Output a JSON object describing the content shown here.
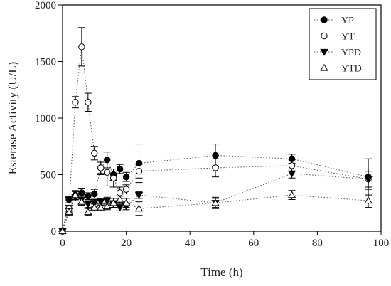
{
  "chart_data": {
    "type": "line",
    "xlabel": "Time (h)",
    "ylabel": "Esterase Activity (U/L)",
    "xlim": [
      0,
      100
    ],
    "ylim": [
      0,
      2000
    ],
    "xticks": [
      0,
      20,
      40,
      60,
      80,
      100
    ],
    "yticks": [
      0,
      500,
      1000,
      1500,
      2000
    ],
    "grid": false,
    "legend_position": "top-right",
    "line_style": "dotted",
    "series": [
      {
        "name": "YP",
        "marker": "filled-circle",
        "x": [
          0,
          2,
          4,
          6,
          8,
          10,
          12,
          14,
          16,
          18,
          20,
          24,
          48,
          72,
          96
        ],
        "y": [
          0,
          280,
          320,
          340,
          310,
          330,
          560,
          630,
          500,
          550,
          480,
          600,
          670,
          640,
          480
        ],
        "err": [
          0,
          30,
          40,
          40,
          30,
          40,
          50,
          70,
          50,
          40,
          40,
          170,
          100,
          40,
          160
        ]
      },
      {
        "name": "YT",
        "marker": "open-circle",
        "x": [
          0,
          2,
          4,
          6,
          8,
          10,
          12,
          14,
          16,
          18,
          20,
          24,
          48,
          72,
          96
        ],
        "y": [
          0,
          200,
          1140,
          1630,
          1140,
          690,
          560,
          520,
          470,
          340,
          370,
          530,
          560,
          580,
          460
        ],
        "err": [
          0,
          30,
          50,
          170,
          80,
          60,
          60,
          120,
          80,
          50,
          40,
          60,
          80,
          50,
          90
        ]
      },
      {
        "name": "YPD",
        "marker": "filled-triangle-down",
        "x": [
          0,
          2,
          4,
          6,
          8,
          10,
          12,
          14,
          16,
          18,
          20,
          24,
          48,
          72,
          96
        ],
        "y": [
          0,
          280,
          300,
          280,
          240,
          250,
          260,
          270,
          240,
          210,
          220,
          320,
          250,
          510,
          460
        ],
        "err": [
          0,
          30,
          30,
          40,
          30,
          30,
          30,
          30,
          30,
          30,
          30,
          30,
          40,
          40,
          70
        ]
      },
      {
        "name": "YTD",
        "marker": "open-triangle-up",
        "x": [
          0,
          2,
          4,
          6,
          8,
          10,
          12,
          14,
          16,
          18,
          20,
          24,
          48,
          72,
          96
        ],
        "y": [
          0,
          170,
          320,
          260,
          170,
          210,
          210,
          220,
          250,
          280,
          250,
          200,
          250,
          320,
          270
        ],
        "err": [
          0,
          30,
          30,
          30,
          30,
          30,
          30,
          30,
          40,
          30,
          40,
          60,
          50,
          40,
          60
        ]
      }
    ]
  }
}
